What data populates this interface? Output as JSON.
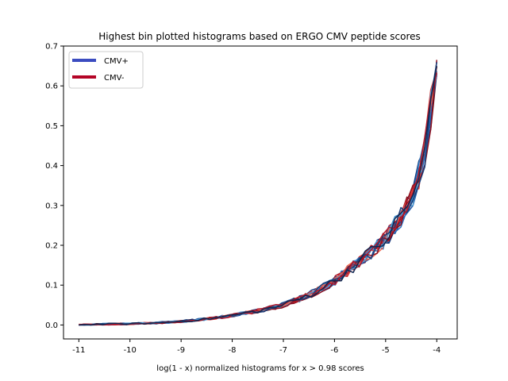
{
  "chart_data": {
    "type": "line",
    "title": "Highest bin plotted histograms based on ERGO CMV peptide scores",
    "xlabel": "log(1 - x) normalized histograms for x > 0.98 scores",
    "ylabel": "",
    "xlim": [
      -11.3,
      -3.6
    ],
    "ylim": [
      -0.035,
      0.7
    ],
    "xticks": [
      -11,
      -10,
      -9,
      -8,
      -7,
      -6,
      -5,
      -4
    ],
    "xtick_labels": [
      "-11",
      "-10",
      "-9",
      "-8",
      "-7",
      "-6",
      "-5",
      "-4"
    ],
    "yticks": [
      0.0,
      0.1,
      0.2,
      0.3,
      0.4,
      0.5,
      0.6,
      0.7
    ],
    "ytick_labels": [
      "0.0",
      "0.1",
      "0.2",
      "0.3",
      "0.4",
      "0.5",
      "0.6",
      "0.7"
    ],
    "grid": false,
    "legend": {
      "placement": "top-left",
      "entries": [
        {
          "label": "CMV+",
          "color": "#3b4cc0"
        },
        {
          "label": "CMV-",
          "color": "#b40426"
        }
      ]
    },
    "base_curve": {
      "x": [
        -11,
        -10.5,
        -10,
        -9.5,
        -9,
        -8.5,
        -8,
        -7.5,
        -7,
        -6.5,
        -6,
        -5.5,
        -5,
        -4.5,
        -4.25,
        -4
      ],
      "y": [
        0.0,
        0.002,
        0.003,
        0.005,
        0.009,
        0.015,
        0.024,
        0.035,
        0.05,
        0.075,
        0.11,
        0.16,
        0.215,
        0.31,
        0.42,
        0.645
      ]
    },
    "series_groups": [
      {
        "name": "CMV+",
        "colors": [
          "#0b2f6e",
          "#123f8a",
          "#1c56a6",
          "#2a6fbd",
          "#3a87c9",
          "#4f9cd4",
          "#1a3f7a",
          "#0f2650"
        ]
      },
      {
        "name": "CMV-",
        "colors": [
          "#5c0a14",
          "#7f0a1c",
          "#a50f22",
          "#c8232a",
          "#e0403a",
          "#f0644d",
          "#8b0e1e",
          "#b2182b"
        ]
      }
    ]
  }
}
